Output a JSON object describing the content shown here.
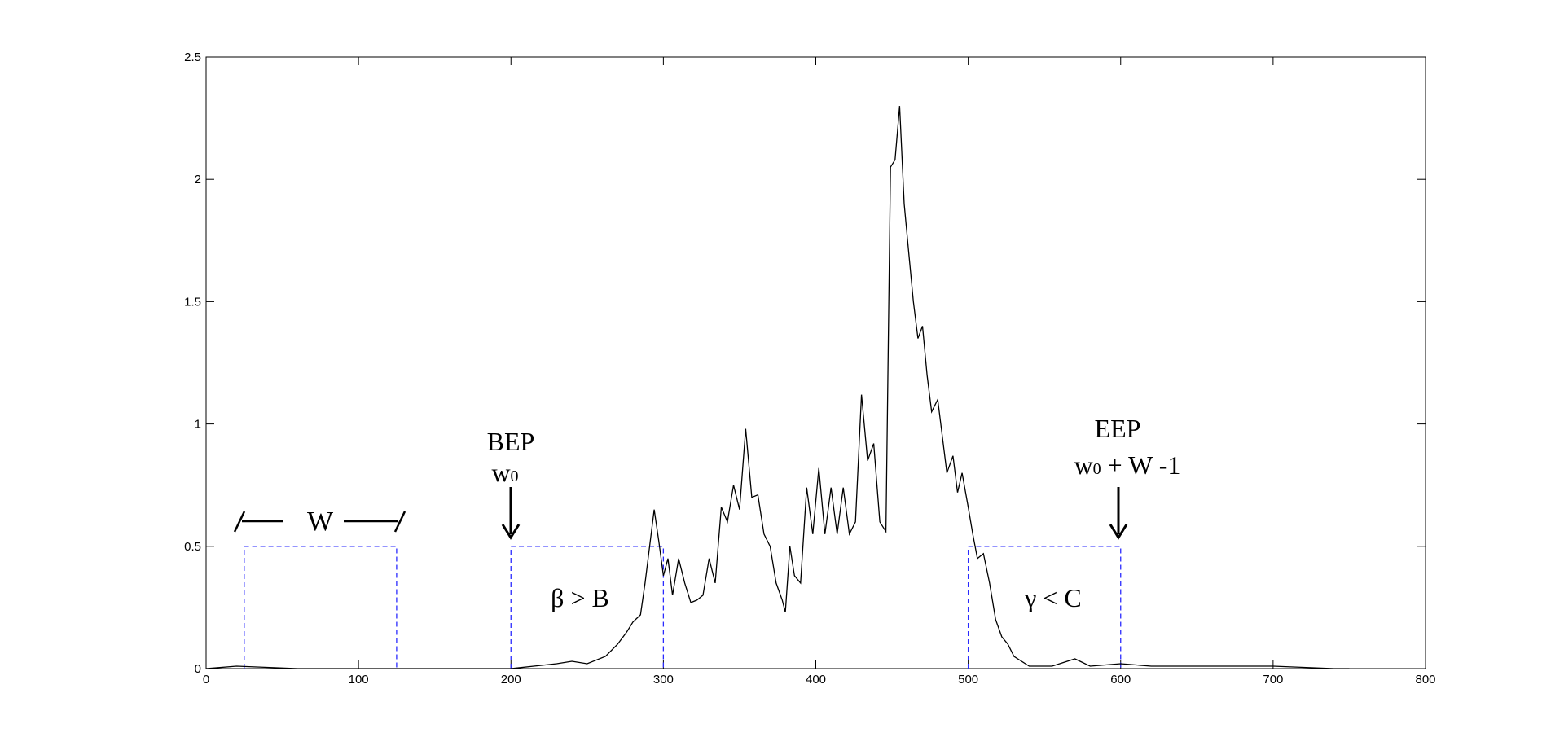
{
  "chart_data": {
    "type": "line",
    "title": "",
    "xlabel": "",
    "ylabel": "",
    "xlim": [
      0,
      800
    ],
    "ylim": [
      0,
      2.5
    ],
    "xticks": [
      "0",
      "100",
      "200",
      "300",
      "400",
      "500",
      "600",
      "700",
      "800"
    ],
    "yticks": [
      "0",
      "0.5",
      "1",
      "1.5",
      "2",
      "2.5"
    ],
    "grid": false,
    "series": [
      {
        "line_color": "#000000",
        "x": [
          0,
          20,
          60,
          120,
          180,
          200,
          215,
          230,
          240,
          250,
          262,
          270,
          276,
          280,
          285,
          288,
          291,
          294,
          297,
          300,
          303,
          306,
          310,
          314,
          318,
          322,
          326,
          330,
          334,
          338,
          342,
          346,
          350,
          354,
          358,
          362,
          366,
          370,
          374,
          378,
          380,
          383,
          386,
          390,
          394,
          398,
          402,
          406,
          410,
          414,
          418,
          422,
          426,
          430,
          434,
          438,
          442,
          446,
          449,
          452,
          455,
          458,
          461,
          464,
          467,
          470,
          473,
          476,
          480,
          483,
          486,
          490,
          493,
          496,
          500,
          503,
          506,
          510,
          514,
          518,
          522,
          526,
          530,
          540,
          555,
          570,
          580,
          600,
          620,
          640,
          660,
          700,
          740,
          750
        ],
        "y": [
          0.0,
          0.01,
          0.0,
          0.0,
          0.0,
          0.0,
          0.01,
          0.02,
          0.03,
          0.02,
          0.05,
          0.1,
          0.15,
          0.19,
          0.22,
          0.35,
          0.5,
          0.65,
          0.52,
          0.38,
          0.45,
          0.3,
          0.45,
          0.35,
          0.27,
          0.28,
          0.3,
          0.45,
          0.35,
          0.66,
          0.6,
          0.75,
          0.65,
          0.98,
          0.7,
          0.71,
          0.55,
          0.5,
          0.35,
          0.28,
          0.23,
          0.5,
          0.38,
          0.35,
          0.74,
          0.55,
          0.82,
          0.55,
          0.74,
          0.55,
          0.74,
          0.55,
          0.6,
          1.12,
          0.85,
          0.92,
          0.6,
          0.56,
          2.05,
          2.08,
          2.3,
          1.9,
          1.7,
          1.5,
          1.35,
          1.4,
          1.2,
          1.05,
          1.1,
          0.95,
          0.8,
          0.87,
          0.72,
          0.8,
          0.66,
          0.55,
          0.45,
          0.47,
          0.35,
          0.2,
          0.13,
          0.1,
          0.05,
          0.01,
          0.01,
          0.04,
          0.01,
          0.02,
          0.01,
          0.01,
          0.01,
          0.01,
          0.0,
          0.0
        ]
      }
    ],
    "windows": [
      {
        "x0": 25,
        "x1": 125,
        "height": 0.5,
        "color": "#2a2aff"
      },
      {
        "x0": 200,
        "x1": 300,
        "height": 0.5,
        "color": "#2a2aff"
      },
      {
        "x0": 500,
        "x1": 600,
        "height": 0.5,
        "color": "#2a2aff"
      }
    ],
    "annotations": {
      "window_label": "W",
      "bep_label": "BEP",
      "bep_sub": "w",
      "bep_sub_index": "0",
      "beta_label": "β > B",
      "eep_label": "EEP",
      "eep_sub": "w",
      "eep_sub_index": "0",
      "eep_sub_rest": " + W -1",
      "gamma_label": "γ < C"
    }
  }
}
